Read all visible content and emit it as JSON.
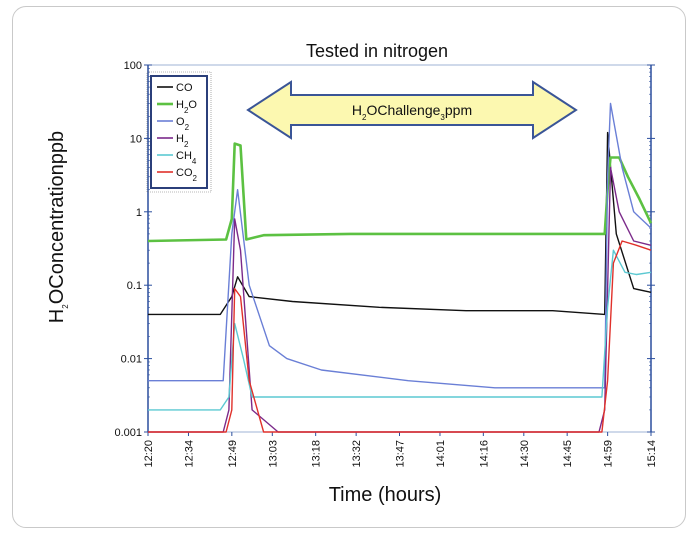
{
  "chart_data": {
    "type": "line",
    "title": "Tested in nitrogen",
    "xlabel": "Time (hours)",
    "ylabel": "H2O Concentration [ppb]",
    "yscale": "log",
    "ylim": [
      0.001,
      100
    ],
    "xlim": [
      "12:20",
      "15:14"
    ],
    "y_ticks": [
      "100",
      "10",
      "1",
      "0.1",
      "0.01",
      "0.001"
    ],
    "x_ticks": [
      "12:20",
      "12:34",
      "12:49",
      "13:03",
      "13:18",
      "13:32",
      "13:47",
      "14:01",
      "14:16",
      "14:30",
      "14:45",
      "14:59",
      "15:14"
    ],
    "annotation": "H2O  Challenge: 3 ppm",
    "legend_position": "top-left",
    "series": [
      {
        "name": "CO",
        "color": "#111111",
        "x": [
          "12:20",
          "12:45",
          "12:49",
          "12:51",
          "12:55",
          "13:10",
          "13:40",
          "14:10",
          "14:40",
          "14:58",
          "14:59",
          "15:02",
          "15:08",
          "15:14"
        ],
        "values": [
          0.04,
          0.04,
          0.07,
          0.13,
          0.07,
          0.06,
          0.05,
          0.045,
          0.045,
          0.04,
          12,
          0.5,
          0.09,
          0.08
        ]
      },
      {
        "name": "H2O",
        "color": "#5cc142",
        "x": [
          "12:20",
          "12:47",
          "12:49",
          "12:50",
          "12:52",
          "12:54",
          "13:00",
          "13:30",
          "14:00",
          "14:30",
          "14:58",
          "14:59",
          "15:00",
          "15:03",
          "15:06",
          "15:10",
          "15:14"
        ],
        "values": [
          0.4,
          0.42,
          0.8,
          8.5,
          8.0,
          0.42,
          0.48,
          0.5,
          0.5,
          0.5,
          0.5,
          2,
          5.5,
          5.5,
          3,
          1.5,
          0.7
        ]
      },
      {
        "name": "O2",
        "color": "#6a7fd6",
        "x": [
          "12:20",
          "12:46",
          "12:49",
          "12:51",
          "12:55",
          "13:02",
          "13:08",
          "13:20",
          "13:50",
          "14:20",
          "14:50",
          "14:58",
          "14:59",
          "15:00",
          "15:04",
          "15:08",
          "15:14"
        ],
        "values": [
          0.005,
          0.005,
          0.5,
          2,
          0.1,
          0.015,
          0.01,
          0.007,
          0.005,
          0.004,
          0.004,
          0.004,
          3,
          30,
          4,
          1,
          0.6
        ]
      },
      {
        "name": "H2",
        "color": "#7b2a8a",
        "x": [
          "12:20",
          "12:46",
          "12:48",
          "12:50",
          "12:52",
          "12:56",
          "13:05",
          "14:00",
          "14:56",
          "14:58",
          "15:00",
          "15:03",
          "15:08",
          "15:14"
        ],
        "values": [
          0.001,
          0.001,
          0.002,
          0.8,
          0.3,
          0.002,
          0.001,
          0.001,
          0.001,
          0.002,
          4,
          1,
          0.4,
          0.35
        ]
      },
      {
        "name": "CH4",
        "color": "#5cc9d2",
        "x": [
          "12:20",
          "12:45",
          "12:48",
          "12:50",
          "12:53",
          "12:56",
          "13:10",
          "13:40",
          "14:10",
          "14:40",
          "14:57",
          "14:59",
          "15:01",
          "15:05",
          "15:09",
          "15:14"
        ],
        "values": [
          0.002,
          0.002,
          0.003,
          0.03,
          0.01,
          0.003,
          0.003,
          0.003,
          0.003,
          0.003,
          0.003,
          0.05,
          0.3,
          0.15,
          0.14,
          0.15
        ]
      },
      {
        "name": "CO2",
        "color": "#e0312b",
        "x": [
          "12:20",
          "12:47",
          "12:49",
          "12:50",
          "12:52",
          "12:55",
          "13:00",
          "14:00",
          "14:57",
          "14:59",
          "15:01",
          "15:04",
          "15:09",
          "15:14"
        ],
        "values": [
          0.001,
          0.001,
          0.002,
          0.09,
          0.07,
          0.005,
          0.001,
          0.001,
          0.001,
          0.005,
          0.2,
          0.4,
          0.35,
          0.3
        ]
      }
    ]
  }
}
